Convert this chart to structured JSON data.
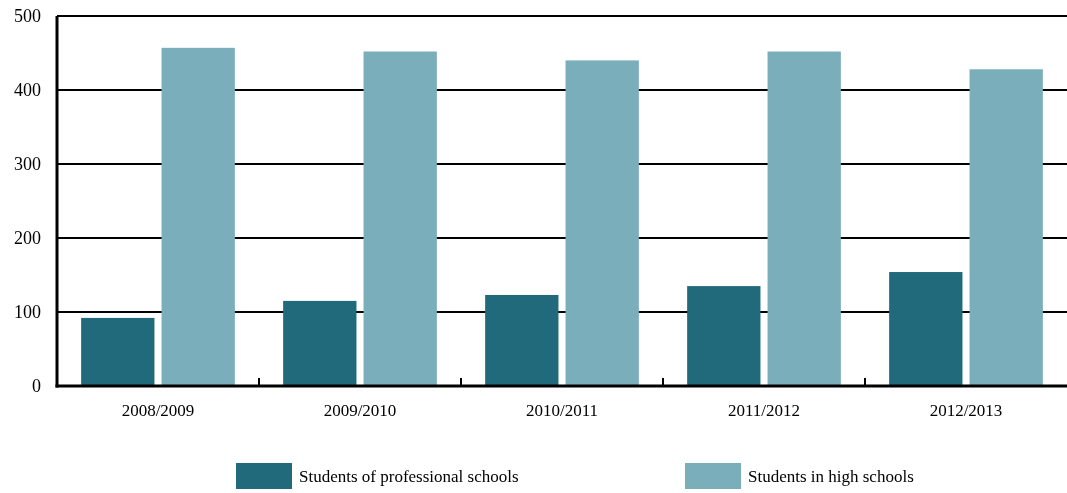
{
  "chart_data": {
    "type": "bar",
    "categories": [
      "2008/2009",
      "2009/2010",
      "2010/2011",
      "2011/2012",
      "2012/2013"
    ],
    "series": [
      {
        "name": "Students of professional schools",
        "color": "#206a7c",
        "values": [
          92,
          115,
          123,
          135,
          154
        ]
      },
      {
        "name": "Students in high schools",
        "color": "#7baebb",
        "values": [
          457,
          452,
          440,
          452,
          428
        ]
      }
    ],
    "ylim": [
      0,
      500
    ],
    "yticks": [
      0,
      100,
      200,
      300,
      400,
      500
    ],
    "grid": "y",
    "legend": "bottom"
  }
}
